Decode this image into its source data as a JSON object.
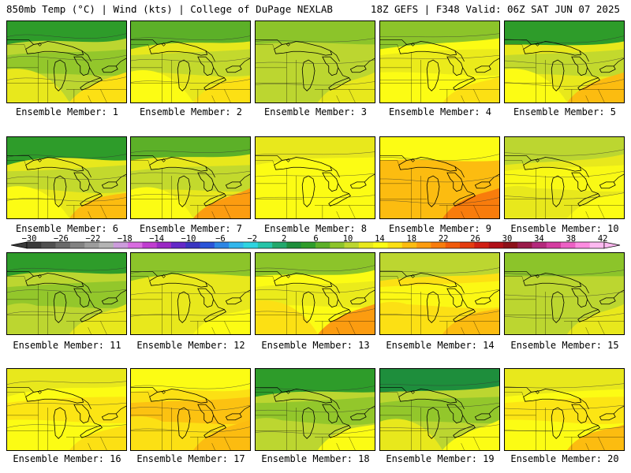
{
  "header": {
    "left": "850mb Temp (°C) | Wind (kts) | College of DuPage NEXLAB",
    "right": "18Z GEFS | F348 Valid: 06Z SAT JUN 07 2025"
  },
  "colorbar": {
    "tick_labels": [
      "−30",
      "−26",
      "−22",
      "−18",
      "−14",
      "−10",
      "−6",
      "−2",
      "2",
      "6",
      "10",
      "14",
      "18",
      "22",
      "26",
      "30",
      "34",
      "38",
      "42"
    ],
    "min": -30,
    "max": 42,
    "step": 2,
    "colors": [
      "#3a3a3a",
      "#505050",
      "#6a6a6a",
      "#828282",
      "#9c9c9c",
      "#b4b4b4",
      "#cc9cdc",
      "#d86ce0",
      "#c03cd0",
      "#9a28c4",
      "#6428c8",
      "#3a34c0",
      "#2a54d8",
      "#2c86e4",
      "#32b6ec",
      "#2ed4e0",
      "#26c4a8",
      "#22a86c",
      "#1e8e3c",
      "#2e9c2a",
      "#5cb028",
      "#8cc42a",
      "#bcd630",
      "#e8e81c",
      "#fcfc14",
      "#fce014",
      "#fcbc10",
      "#fc9c10",
      "#f87c0c",
      "#f05a0c",
      "#e43c10",
      "#d01e14",
      "#b01018",
      "#8c1018",
      "#9a1a4a",
      "#b4287c",
      "#d43ca0",
      "#ec60c4",
      "#fc8ce0",
      "#fcb8f0"
    ]
  },
  "panels": [
    {
      "label": "Ensemble Member: 1",
      "levels": [
        4,
        8,
        12,
        16
      ]
    },
    {
      "label": "Ensemble Member: 2",
      "levels": [
        6,
        10,
        14,
        16
      ]
    },
    {
      "label": "Ensemble Member: 3",
      "levels": [
        8,
        8,
        10,
        12
      ]
    },
    {
      "label": "Ensemble Member: 4",
      "levels": [
        8,
        12,
        14,
        16
      ]
    },
    {
      "label": "Ensemble Member: 5",
      "levels": [
        4,
        10,
        14,
        18
      ]
    },
    {
      "label": "Ensemble Member: 6",
      "levels": [
        4,
        10,
        14,
        18
      ]
    },
    {
      "label": "Ensemble Member: 7",
      "levels": [
        6,
        10,
        14,
        20
      ]
    },
    {
      "label": "Ensemble Member: 8",
      "levels": [
        12,
        12,
        14,
        14
      ]
    },
    {
      "label": "Ensemble Member: 9",
      "levels": [
        14,
        16,
        18,
        22
      ]
    },
    {
      "label": "Ensemble Member: 10",
      "levels": [
        10,
        12,
        12,
        14
      ]
    },
    {
      "label": "Ensemble Member: 11",
      "levels": [
        4,
        8,
        10,
        12
      ]
    },
    {
      "label": "Ensemble Member: 12",
      "levels": [
        8,
        10,
        12,
        14
      ]
    },
    {
      "label": "Ensemble Member: 13",
      "levels": [
        8,
        12,
        16,
        20
      ]
    },
    {
      "label": "Ensemble Member: 14",
      "levels": [
        10,
        14,
        16,
        18
      ]
    },
    {
      "label": "Ensemble Member: 15",
      "levels": [
        8,
        8,
        10,
        12
      ]
    },
    {
      "label": "Ensemble Member: 16",
      "levels": [
        12,
        14,
        14,
        16
      ]
    },
    {
      "label": "Ensemble Member: 17",
      "levels": [
        14,
        16,
        16,
        18
      ]
    },
    {
      "label": "Ensemble Member: 18",
      "levels": [
        4,
        8,
        10,
        14
      ]
    },
    {
      "label": "Ensemble Member: 19",
      "levels": [
        2,
        8,
        12,
        14
      ]
    },
    {
      "label": "Ensemble Member: 20",
      "levels": [
        12,
        14,
        14,
        18
      ]
    }
  ]
}
